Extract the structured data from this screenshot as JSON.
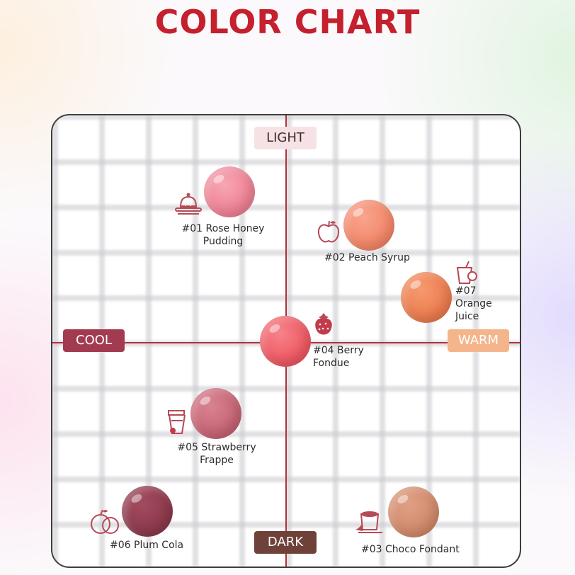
{
  "title": "COLOR CHART",
  "axes": {
    "top": "LIGHT",
    "left": "COOL",
    "right": "WARM",
    "bottom": "DARK"
  },
  "colors": {
    "accent": "#c4202e",
    "axis_line": "#b2313c"
  },
  "swatches": [
    {
      "name_line1": "#01 Rose Honey",
      "name_line2": "Pudding",
      "color": "#f08a9c",
      "icon": "pudding-icon"
    },
    {
      "name_line1": "#02 Peach Syrup",
      "name_line2": "",
      "color": "#f48a73",
      "icon": "apple-icon"
    },
    {
      "name_line1": "#07",
      "name_line2": "Orange",
      "name_line3": "Juice",
      "color": "#ec7d4f",
      "icon": "orange-juice-icon"
    },
    {
      "name_line1": "#04 Berry",
      "name_line2": "Fondue",
      "color": "#ee5a63",
      "icon": "strawberry-icon"
    },
    {
      "name_line1": "#05 Strawberry",
      "name_line2": "Frappe",
      "color": "#c66575",
      "icon": "frappe-icon"
    },
    {
      "name_line1": "#06 Plum Cola",
      "name_line2": "",
      "color": "#8e3a4c",
      "icon": "plum-icon"
    },
    {
      "name_line1": "#03 Choco Fondant",
      "name_line2": "",
      "color": "#d28a6c",
      "icon": "fondant-icon"
    }
  ]
}
